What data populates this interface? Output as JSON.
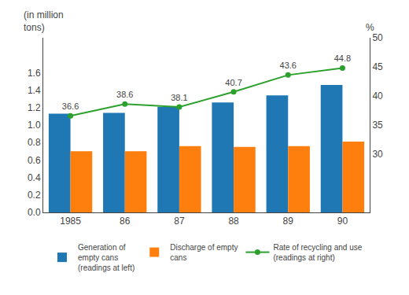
{
  "chart_data": {
    "type": "bar",
    "categories": [
      "1985",
      "86",
      "87",
      "88",
      "89",
      "90"
    ],
    "ylabel": "(in million\ntons)",
    "y2label": "%",
    "series": [
      {
        "name": "Generation of\nempty cans\n(readings at left)",
        "values": [
          1.13,
          1.14,
          1.21,
          1.26,
          1.34,
          1.46
        ]
      },
      {
        "name": "Discharge of empty\ncans",
        "values": [
          0.7,
          0.7,
          0.76,
          0.75,
          0.76,
          0.81
        ]
      },
      {
        "name": "Rate of recycling and use\n(readings at right)",
        "type": "line",
        "axis": "y2",
        "marker": "circle",
        "data_labels": true,
        "values": [
          36.6,
          38.6,
          38.1,
          40.7,
          43.6,
          44.8
        ]
      }
    ],
    "ylim": [
      0,
      2.0
    ],
    "yticks": [
      {
        "value": 0,
        "label": "0.0"
      },
      0.2,
      0.4,
      0.6,
      0.8,
      {
        "value": 1.0,
        "label": "1.0"
      },
      1.2,
      1.4,
      1.6
    ],
    "y2lim": [
      20,
      50
    ],
    "y2ticks": [
      30,
      35,
      40,
      45,
      50
    ],
    "grid": false,
    "legend": "bottom"
  }
}
